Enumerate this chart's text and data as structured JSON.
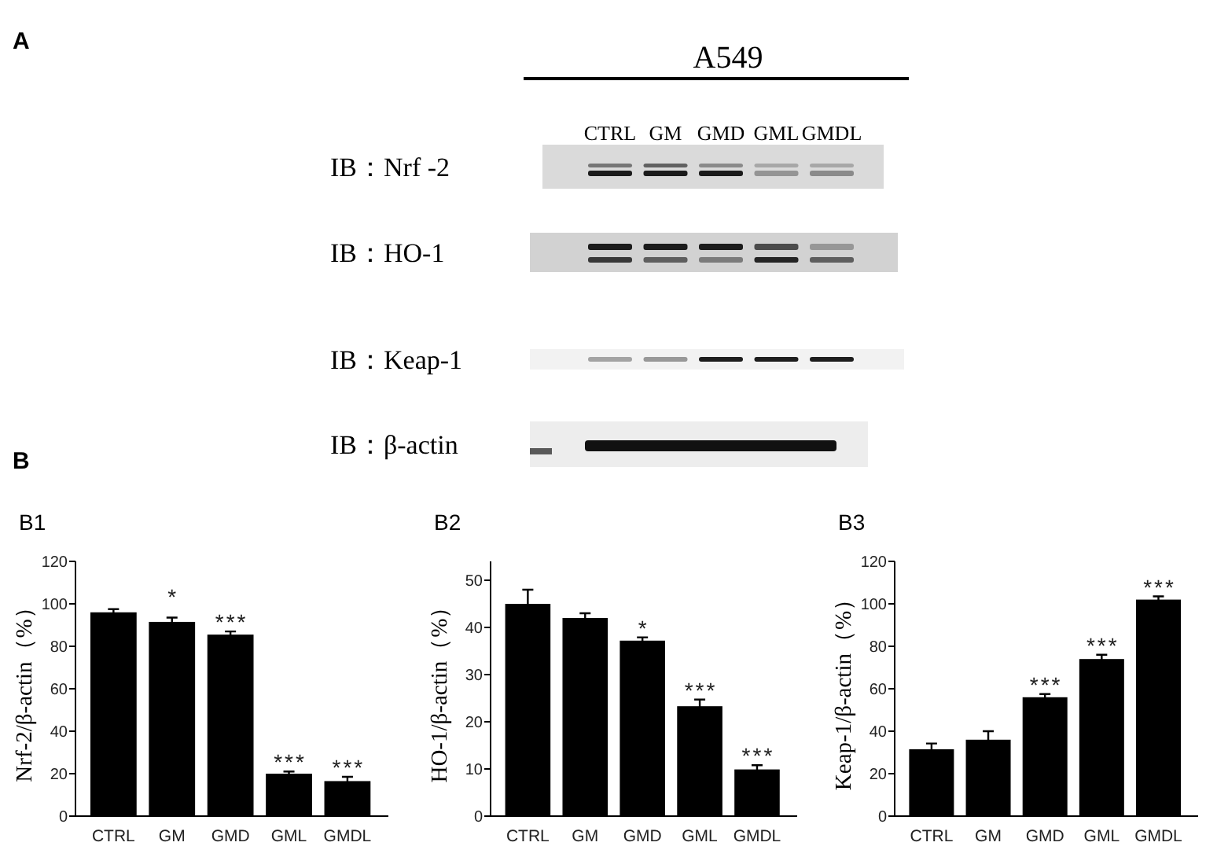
{
  "chart_data": [
    {
      "type": "other",
      "title": "A",
      "subtitle": "A549",
      "categories": [
        "CTRL",
        "GM",
        "GMD",
        "GML",
        "GMDL"
      ],
      "annotations": [
        "IB：Nrf -2",
        "IB：HO-1",
        "IB：Keap-1",
        "IB：β-actin"
      ]
    },
    {
      "type": "bar",
      "title": "B1",
      "ylabel": "Nrf-2/β-actin（%）",
      "categories": [
        "CTRL",
        "GM",
        "GMD",
        "GML",
        "GMDL"
      ],
      "values": [
        96,
        91.5,
        85.5,
        20,
        16.5
      ],
      "errors": [
        1.5,
        2,
        1.5,
        1,
        2
      ],
      "color": "#000000",
      "ylim": [
        0,
        120
      ],
      "yticks": [
        0,
        20,
        40,
        60,
        80,
        100,
        120
      ],
      "annotations": [
        "B",
        {
          "text": "*",
          "x": "GM",
          "y": 93.5
        },
        {
          "text": "***",
          "x": "GMD",
          "y": 87
        },
        {
          "text": "***",
          "x": "GML",
          "y": 21
        },
        {
          "text": "***",
          "x": "GMDL",
          "y": 18.5
        }
      ]
    },
    {
      "type": "bar",
      "title": "B2",
      "ylabel": "HO-1/β-actin（%）",
      "categories": [
        "CTRL",
        "GM",
        "GMD",
        "GML",
        "GMDL"
      ],
      "values": [
        45,
        42,
        37.2,
        23.3,
        9.9
      ],
      "errors": [
        3,
        1,
        0.7,
        1.4,
        0.9
      ],
      "color": "#000000",
      "ylim": [
        0,
        54
      ],
      "yticks": [
        0,
        10,
        20,
        30,
        40,
        50
      ],
      "annotations": [
        {
          "text": "*",
          "x": "GMD",
          "y": 37.9
        },
        {
          "text": "***",
          "x": "GML",
          "y": 24.7
        },
        {
          "text": "***",
          "x": "GMDL",
          "y": 10.8
        }
      ]
    },
    {
      "type": "bar",
      "title": "B3",
      "ylabel": "Keap-1/β-actin（%）",
      "categories": [
        "CTRL",
        "GM",
        "GMD",
        "GML",
        "GMDL"
      ],
      "values": [
        31.5,
        36,
        56,
        74,
        102
      ],
      "errors": [
        2.7,
        4,
        1.5,
        2,
        1.5
      ],
      "color": "#000000",
      "ylim": [
        0,
        120
      ],
      "yticks": [
        0,
        20,
        40,
        60,
        80,
        100,
        120
      ],
      "annotations": [
        {
          "text": "***",
          "x": "GMD",
          "y": 57.5
        },
        {
          "text": "***",
          "x": "GML",
          "y": 76
        },
        {
          "text": "***",
          "x": "GMDL",
          "y": 103.5
        }
      ]
    }
  ]
}
